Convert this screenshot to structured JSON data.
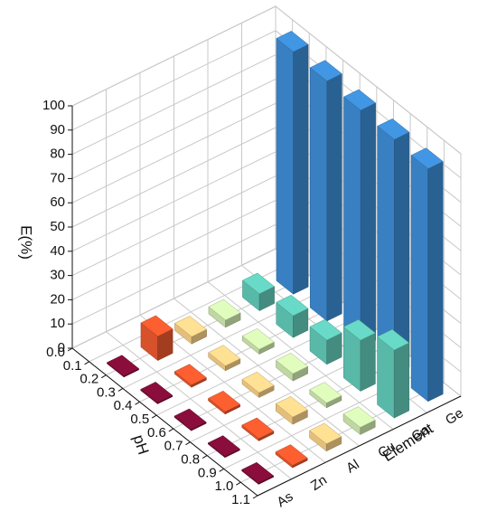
{
  "chart_data": {
    "type": "bar3d",
    "x_label": "pH",
    "y_label": "Element",
    "z_label": "E(%)",
    "x": [
      0.2,
      0.4,
      0.6,
      0.8,
      1.0
    ],
    "xlim": [
      0,
      1.1
    ],
    "xticks": [
      {
        "value": 0,
        "label": "0.0"
      },
      0.1,
      0.2,
      0.3,
      0.4,
      0.5,
      0.6,
      0.7,
      0.8,
      0.9,
      {
        "value": 1,
        "label": "1.0"
      },
      1.1
    ],
    "zlim": [
      0,
      100
    ],
    "zticks": [
      0,
      10,
      20,
      30,
      40,
      50,
      60,
      70,
      80,
      90,
      100
    ],
    "grid": true,
    "series": [
      {
        "name": "As",
        "color": "#7b0c35",
        "values": [
          0.5,
          0.5,
          0.5,
          0.5,
          0.5
        ]
      },
      {
        "name": "Zn",
        "color": "#e2552c",
        "values": [
          10,
          1,
          1,
          1,
          1
        ]
      },
      {
        "name": "Al",
        "color": "#f0c983",
        "values": [
          3,
          2,
          2,
          3,
          3
        ]
      },
      {
        "name": "Cu",
        "color": "#c9e2aa",
        "values": [
          3,
          2,
          3,
          2,
          3
        ]
      },
      {
        "name": "Ga",
        "color": "#5ec3b2",
        "values": [
          7,
          9,
          10,
          21,
          28
        ]
      },
      {
        "name": "Ge",
        "color": "#3b87cc",
        "values": [
          100,
          99,
          98,
          97,
          96
        ]
      }
    ]
  }
}
